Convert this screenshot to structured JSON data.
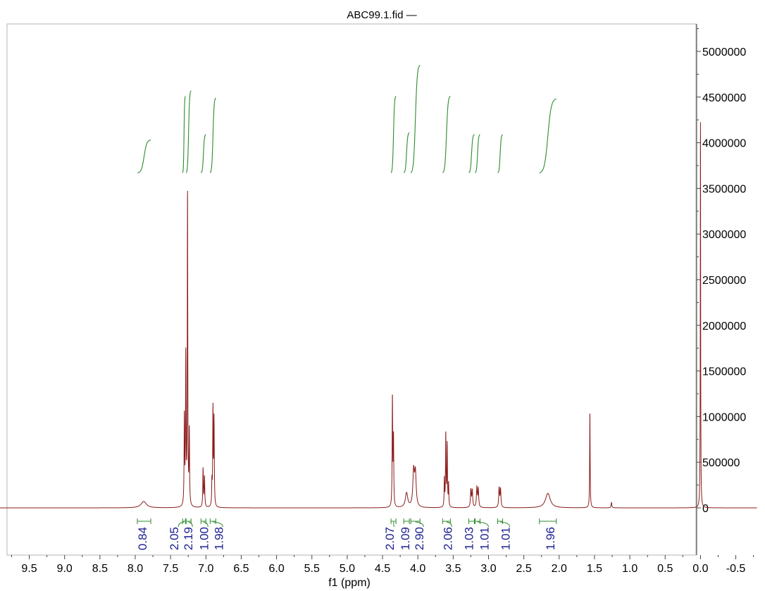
{
  "colors": {
    "spectrum": "#8b1a1a",
    "integral": "#2e8b2e",
    "integral_value": "#1b1f8f",
    "frame": "#b5b5b5"
  },
  "chart_data": {
    "type": "line",
    "title": "ABC99.1.fid —",
    "xlabel": "f1 (ppm)",
    "ylabel": "",
    "x_reversed": true,
    "xlim": [
      10.0,
      -0.8
    ],
    "ylim": [
      -540000,
      5500000
    ],
    "x_ticks": [
      "9.5",
      "9.0",
      "8.5",
      "8.0",
      "7.5",
      "7.0",
      "6.5",
      "6.0",
      "5.5",
      "5.0",
      "4.5",
      "4.0",
      "3.5",
      "3.0",
      "2.5",
      "2.0",
      "1.5",
      "1.0",
      "0.5",
      "0.0",
      "-0.5"
    ],
    "y_ticks": [
      "0",
      "500000",
      "1000000",
      "1500000",
      "2000000",
      "2500000",
      "3000000",
      "3500000",
      "4000000",
      "4500000",
      "5000000"
    ],
    "peaks": [
      {
        "x": 7.88,
        "h": 70000,
        "w": 0.045
      },
      {
        "x": 7.305,
        "h": 960000,
        "w": 0.0045
      },
      {
        "x": 7.285,
        "h": 1620000,
        "w": 0.0045
      },
      {
        "x": 7.26,
        "h": 3420000,
        "w": 0.004
      },
      {
        "x": 7.235,
        "h": 810000,
        "w": 0.0045
      },
      {
        "x": 7.04,
        "h": 420000,
        "w": 0.005
      },
      {
        "x": 7.02,
        "h": 330000,
        "w": 0.005
      },
      {
        "x": 6.915,
        "h": 250000,
        "w": 0.004
      },
      {
        "x": 6.9,
        "h": 1060000,
        "w": 0.0045
      },
      {
        "x": 6.885,
        "h": 940000,
        "w": 0.0045
      },
      {
        "x": 4.36,
        "h": 1190000,
        "w": 0.0045
      },
      {
        "x": 4.345,
        "h": 740000,
        "w": 0.0045
      },
      {
        "x": 4.16,
        "h": 160000,
        "w": 0.02
      },
      {
        "x": 4.06,
        "h": 380000,
        "w": 0.013
      },
      {
        "x": 4.035,
        "h": 360000,
        "w": 0.013
      },
      {
        "x": 3.625,
        "h": 300000,
        "w": 0.004
      },
      {
        "x": 3.605,
        "h": 800000,
        "w": 0.0045
      },
      {
        "x": 3.585,
        "h": 680000,
        "w": 0.0045
      },
      {
        "x": 3.565,
        "h": 250000,
        "w": 0.004
      },
      {
        "x": 3.25,
        "h": 190000,
        "w": 0.007
      },
      {
        "x": 3.23,
        "h": 185000,
        "w": 0.007
      },
      {
        "x": 3.165,
        "h": 215000,
        "w": 0.007
      },
      {
        "x": 3.145,
        "h": 200000,
        "w": 0.007
      },
      {
        "x": 2.85,
        "h": 210000,
        "w": 0.007
      },
      {
        "x": 2.83,
        "h": 200000,
        "w": 0.007
      },
      {
        "x": 2.16,
        "h": 160000,
        "w": 0.04
      },
      {
        "x": 1.565,
        "h": 1050000,
        "w": 0.004
      },
      {
        "x": 1.26,
        "h": 60000,
        "w": 0.006
      },
      {
        "x": 0.0,
        "h": 4300000,
        "w": 0.003
      }
    ],
    "integral_curves": [
      {
        "x1": 7.97,
        "x2": 7.78,
        "y1": 3670000,
        "y2": 4030000
      },
      {
        "x1": 7.33,
        "x2": 7.29,
        "y1": 3670000,
        "y2": 4510000
      },
      {
        "x1": 7.28,
        "x2": 7.21,
        "y1": 3670000,
        "y2": 4570000
      },
      {
        "x1": 7.07,
        "x2": 7.0,
        "y1": 3670000,
        "y2": 4090000
      },
      {
        "x1": 6.94,
        "x2": 6.86,
        "y1": 3670000,
        "y2": 4490000
      },
      {
        "x1": 4.38,
        "x2": 4.31,
        "y1": 3670000,
        "y2": 4510000
      },
      {
        "x1": 4.2,
        "x2": 4.12,
        "y1": 3670000,
        "y2": 4110000
      },
      {
        "x1": 4.1,
        "x2": 3.97,
        "y1": 3670000,
        "y2": 4850000
      },
      {
        "x1": 3.65,
        "x2": 3.54,
        "y1": 3670000,
        "y2": 4510000
      },
      {
        "x1": 3.28,
        "x2": 3.2,
        "y1": 3670000,
        "y2": 4090000
      },
      {
        "x1": 3.19,
        "x2": 3.12,
        "y1": 3670000,
        "y2": 4090000
      },
      {
        "x1": 2.87,
        "x2": 2.8,
        "y1": 3670000,
        "y2": 4090000
      },
      {
        "x1": 2.28,
        "x2": 2.04,
        "y1": 3670000,
        "y2": 4480000
      }
    ],
    "integral_brackets": [
      {
        "x1": 7.97,
        "x2": 7.78
      },
      {
        "x1": 7.33,
        "x2": 7.29
      },
      {
        "x1": 7.28,
        "x2": 7.21
      },
      {
        "x1": 7.07,
        "x2": 7.0
      },
      {
        "x1": 6.94,
        "x2": 6.86
      },
      {
        "x1": 4.38,
        "x2": 4.31
      },
      {
        "x1": 4.2,
        "x2": 4.12
      },
      {
        "x1": 4.1,
        "x2": 3.97
      },
      {
        "x1": 3.65,
        "x2": 3.54
      },
      {
        "x1": 3.28,
        "x2": 3.2
      },
      {
        "x1": 3.19,
        "x2": 3.12
      },
      {
        "x1": 2.87,
        "x2": 2.8
      },
      {
        "x1": 2.28,
        "x2": 2.04
      }
    ],
    "integral_labels": [
      {
        "text": "0.84",
        "x": 7.9,
        "b": -1
      },
      {
        "text": "2.05",
        "x": 7.45,
        "b": 1
      },
      {
        "text": "2.19",
        "x": 7.25,
        "b": 2
      },
      {
        "text": "1.00",
        "x": 7.03,
        "b": 3
      },
      {
        "text": "1.98",
        "x": 6.82,
        "b": 4
      },
      {
        "text": "2.07",
        "x": 4.4,
        "b": 5
      },
      {
        "text": "1.09",
        "x": 4.18,
        "b": -1
      },
      {
        "text": "2.90",
        "x": 3.98,
        "b": 7
      },
      {
        "text": "2.06",
        "x": 3.58,
        "b": 8
      },
      {
        "text": "1.03",
        "x": 3.28,
        "b": -1
      },
      {
        "text": "1.01",
        "x": 3.06,
        "b": 10
      },
      {
        "text": "1.01",
        "x": 2.76,
        "b": 11
      },
      {
        "text": "1.96",
        "x": 2.13,
        "b": -1
      }
    ]
  }
}
